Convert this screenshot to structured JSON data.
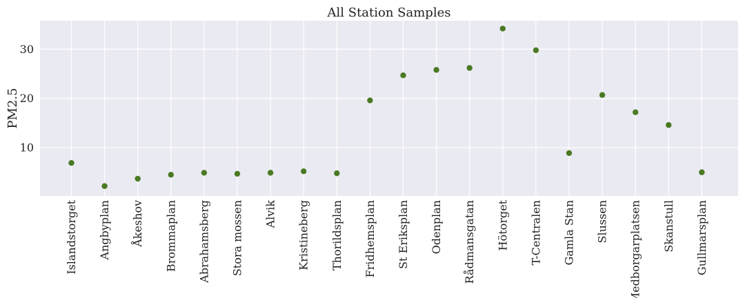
{
  "chart_data": {
    "type": "scatter",
    "title": "All Station Samples",
    "xlabel": "",
    "ylabel": "PM2.5",
    "categories": [
      "Islandstorget",
      "Angbyplan",
      "Åkeshov",
      "Brommaplan",
      "Abrahamsberg",
      "Stora mossen",
      "Alvik",
      "Kristineberg",
      "Thorildsplan",
      "Fridhemsplan",
      "St Eriksplan",
      "Odenplan",
      "Rådmansgatan",
      "Hötorget",
      "T-Centralen",
      "Gamla Stan",
      "Slussen",
      "Medborgarplatsen",
      "Skanstull",
      "Gullmarsplan"
    ],
    "values": [
      6.9,
      2.2,
      3.7,
      4.5,
      4.9,
      4.7,
      4.9,
      5.2,
      4.8,
      19.6,
      24.7,
      25.8,
      26.2,
      34.2,
      29.8,
      8.9,
      20.7,
      17.2,
      14.6,
      5.0
    ],
    "ylim": [
      0.2,
      35.8
    ],
    "yticks": [
      10,
      20,
      30
    ],
    "grid": true,
    "legend": "none",
    "color": "#4a7a24",
    "background": "#eaeaf2"
  }
}
